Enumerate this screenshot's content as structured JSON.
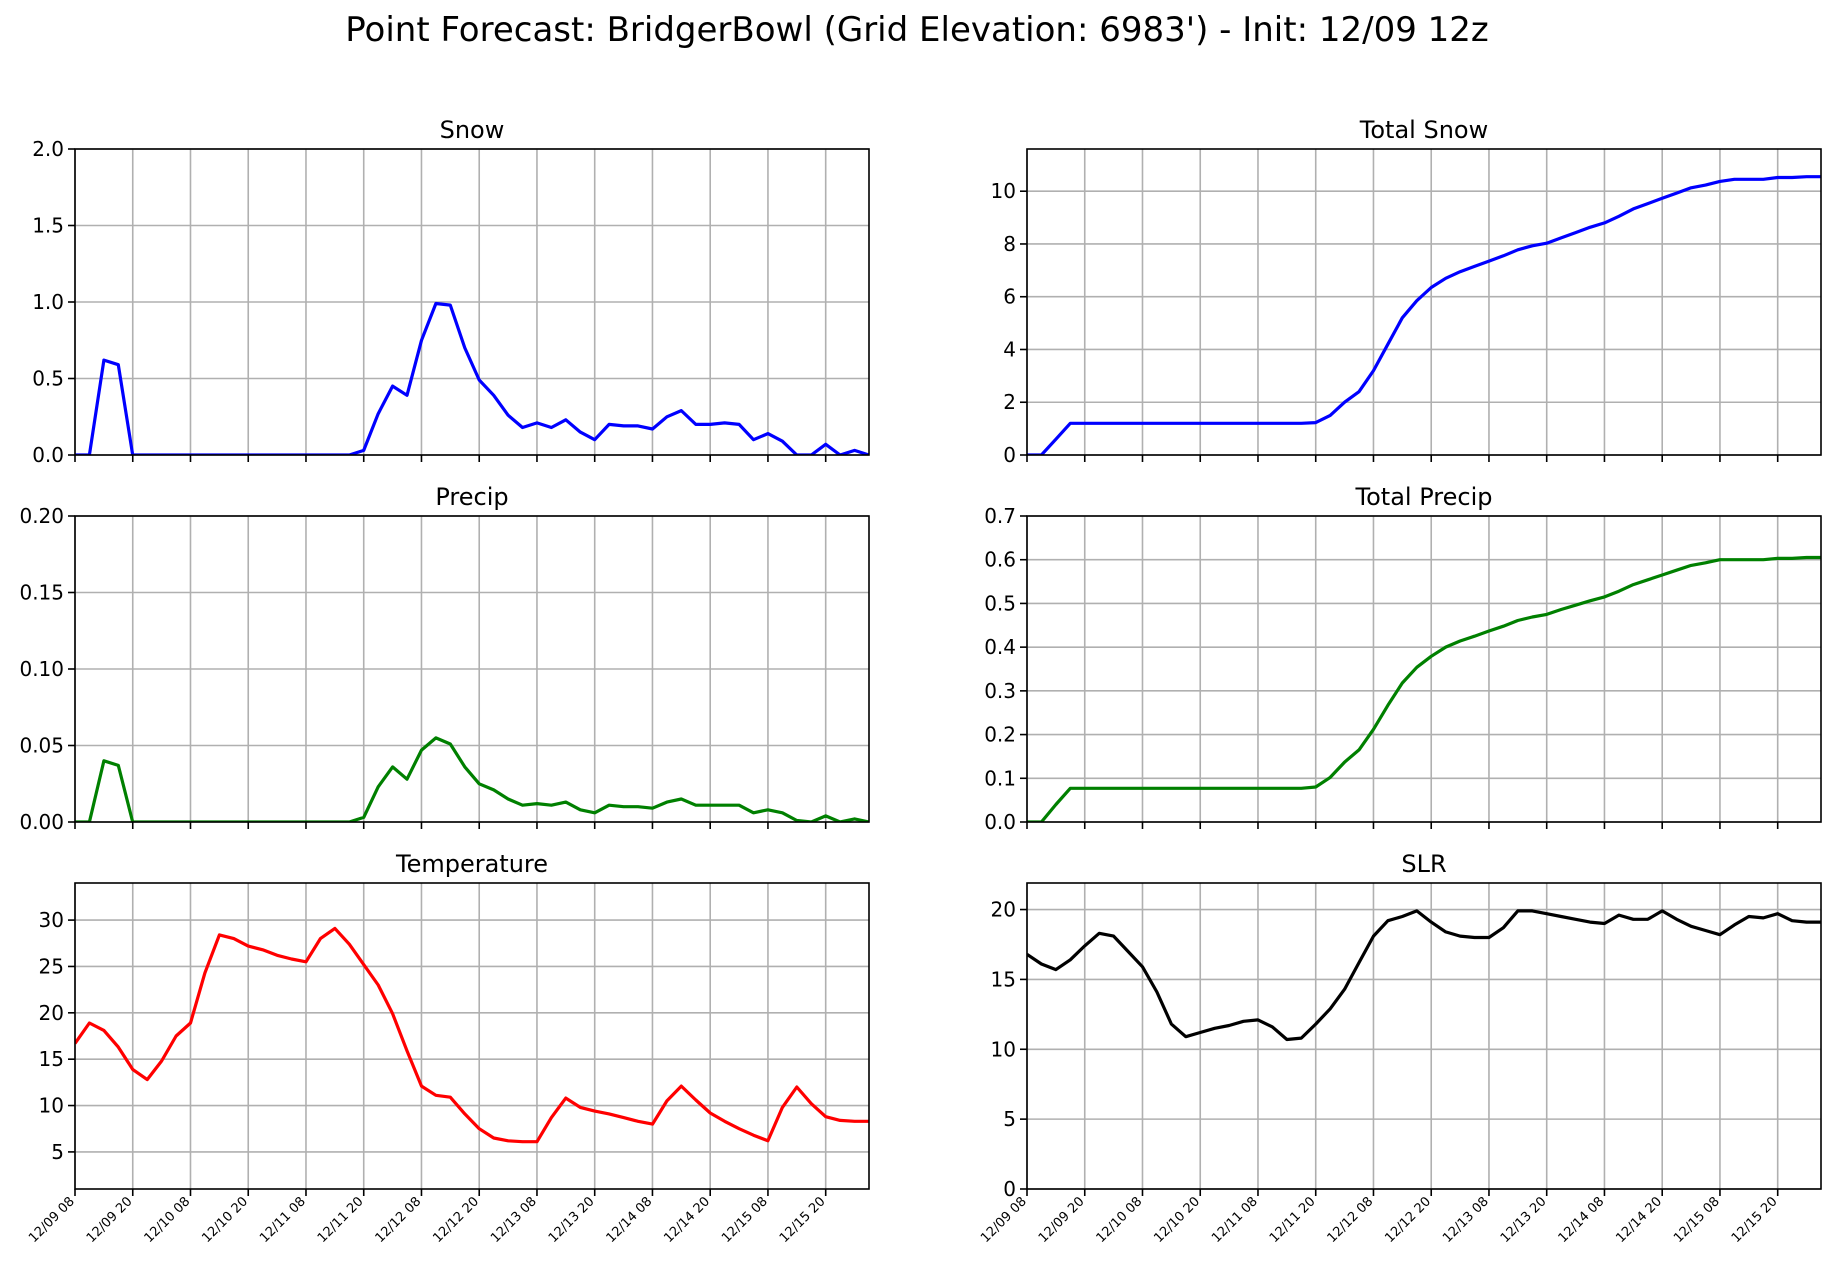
{
  "figure": {
    "title": "Point Forecast: BridgerBowl (Grid Elevation: 6983') - Init: 12/09 12z"
  },
  "time_labels": [
    "12/09 08",
    "12/09 20",
    "12/10 08",
    "12/10 20",
    "12/11 08",
    "12/11 20",
    "12/12 08",
    "12/12 20",
    "12/13 08",
    "12/13 20",
    "12/14 08",
    "12/14 20",
    "12/15 08",
    "12/15 20"
  ],
  "chart_data": [
    {
      "id": "snow",
      "type": "line",
      "title": "Snow",
      "color": "#0000ff",
      "ylim": [
        0,
        2.0
      ],
      "yticks": [
        0.0,
        0.5,
        1.0,
        1.5,
        2.0
      ],
      "ytick_labels": [
        "0.0",
        "0.5",
        "1.0",
        "1.5",
        "2.0"
      ],
      "xlim": [
        0,
        165
      ],
      "xticks": [
        0,
        12,
        24,
        36,
        48,
        60,
        72,
        84,
        96,
        108,
        120,
        132,
        144,
        156
      ],
      "grid": true,
      "show_xticklabels": false,
      "x": [
        0,
        3,
        6,
        9,
        12,
        15,
        18,
        21,
        24,
        27,
        30,
        33,
        36,
        39,
        42,
        45,
        48,
        51,
        54,
        57,
        60,
        63,
        66,
        69,
        72,
        75,
        78,
        81,
        84,
        87,
        90,
        93,
        96,
        99,
        102,
        105,
        108,
        111,
        114,
        117,
        120,
        123,
        126,
        129,
        132,
        135,
        138,
        141,
        144,
        147,
        150,
        153,
        156,
        159,
        162,
        165
      ],
      "values": [
        0,
        0,
        0.62,
        0.59,
        0,
        0,
        0,
        0,
        0,
        0,
        0,
        0,
        0,
        0,
        0,
        0,
        0,
        0,
        0,
        0,
        0.03,
        0.27,
        0.45,
        0.39,
        0.75,
        0.99,
        0.98,
        0.7,
        0.49,
        0.39,
        0.26,
        0.18,
        0.21,
        0.18,
        0.23,
        0.15,
        0.1,
        0.2,
        0.19,
        0.19,
        0.17,
        0.25,
        0.29,
        0.2,
        0.2,
        0.21,
        0.2,
        0.1,
        0.14,
        0.09,
        0,
        0,
        0.07,
        0,
        0.03,
        0
      ]
    },
    {
      "id": "total-snow",
      "type": "line",
      "title": "Total Snow",
      "color": "#0000ff",
      "ylim": [
        0,
        11.6
      ],
      "yticks": [
        0,
        2,
        4,
        6,
        8,
        10
      ],
      "ytick_labels": [
        "0",
        "2",
        "4",
        "6",
        "8",
        "10"
      ],
      "xlim": [
        0,
        165
      ],
      "xticks": [
        0,
        12,
        24,
        36,
        48,
        60,
        72,
        84,
        96,
        108,
        120,
        132,
        144,
        156
      ],
      "grid": true,
      "show_xticklabels": false,
      "x": [
        0,
        3,
        6,
        9,
        12,
        15,
        18,
        21,
        24,
        27,
        30,
        33,
        36,
        39,
        42,
        45,
        48,
        51,
        54,
        57,
        60,
        63,
        66,
        69,
        72,
        75,
        78,
        81,
        84,
        87,
        90,
        93,
        96,
        99,
        102,
        105,
        108,
        111,
        114,
        117,
        120,
        123,
        126,
        129,
        132,
        135,
        138,
        141,
        144,
        147,
        150,
        153,
        156,
        159,
        162,
        165
      ],
      "values": [
        0,
        0,
        0.6,
        1.2,
        1.2,
        1.2,
        1.2,
        1.2,
        1.2,
        1.2,
        1.2,
        1.2,
        1.2,
        1.2,
        1.2,
        1.2,
        1.2,
        1.2,
        1.2,
        1.2,
        1.23,
        1.5,
        2.0,
        2.4,
        3.2,
        4.2,
        5.2,
        5.85,
        6.35,
        6.7,
        6.95,
        7.15,
        7.35,
        7.55,
        7.78,
        7.93,
        8.03,
        8.23,
        8.43,
        8.63,
        8.8,
        9.05,
        9.33,
        9.53,
        9.73,
        9.93,
        10.13,
        10.23,
        10.37,
        10.45,
        10.45,
        10.45,
        10.52,
        10.52,
        10.55,
        10.55
      ]
    },
    {
      "id": "precip",
      "type": "line",
      "title": "Precip",
      "color": "#008000",
      "ylim": [
        0,
        0.2
      ],
      "yticks": [
        0,
        0.05,
        0.1,
        0.15,
        0.2
      ],
      "ytick_labels": [
        "0.00",
        "0.05",
        "0.10",
        "0.15",
        "0.20"
      ],
      "xlim": [
        0,
        165
      ],
      "xticks": [
        0,
        12,
        24,
        36,
        48,
        60,
        72,
        84,
        96,
        108,
        120,
        132,
        144,
        156
      ],
      "grid": true,
      "show_xticklabels": false,
      "x": [
        0,
        3,
        6,
        9,
        12,
        15,
        18,
        21,
        24,
        27,
        30,
        33,
        36,
        39,
        42,
        45,
        48,
        51,
        54,
        57,
        60,
        63,
        66,
        69,
        72,
        75,
        78,
        81,
        84,
        87,
        90,
        93,
        96,
        99,
        102,
        105,
        108,
        111,
        114,
        117,
        120,
        123,
        126,
        129,
        132,
        135,
        138,
        141,
        144,
        147,
        150,
        153,
        156,
        159,
        162,
        165
      ],
      "values": [
        0,
        0,
        0.04,
        0.037,
        0,
        0,
        0,
        0,
        0,
        0,
        0,
        0,
        0,
        0,
        0,
        0,
        0,
        0,
        0,
        0,
        0.003,
        0.023,
        0.036,
        0.028,
        0.047,
        0.055,
        0.051,
        0.036,
        0.025,
        0.021,
        0.015,
        0.011,
        0.012,
        0.011,
        0.013,
        0.008,
        0.006,
        0.011,
        0.01,
        0.01,
        0.009,
        0.013,
        0.015,
        0.011,
        0.011,
        0.011,
        0.011,
        0.006,
        0.008,
        0.006,
        0.001,
        0,
        0.004,
        0,
        0.002,
        0
      ]
    },
    {
      "id": "total-precip",
      "type": "line",
      "title": "Total Precip",
      "color": "#008000",
      "ylim": [
        0,
        0.7
      ],
      "yticks": [
        0,
        0.1,
        0.2,
        0.3,
        0.4,
        0.5,
        0.6,
        0.7
      ],
      "ytick_labels": [
        "0.0",
        "0.1",
        "0.2",
        "0.3",
        "0.4",
        "0.5",
        "0.6",
        "0.7"
      ],
      "xlim": [
        0,
        165
      ],
      "xticks": [
        0,
        12,
        24,
        36,
        48,
        60,
        72,
        84,
        96,
        108,
        120,
        132,
        144,
        156
      ],
      "grid": true,
      "show_xticklabels": false,
      "x": [
        0,
        3,
        6,
        9,
        12,
        15,
        18,
        21,
        24,
        27,
        30,
        33,
        36,
        39,
        42,
        45,
        48,
        51,
        54,
        57,
        60,
        63,
        66,
        69,
        72,
        75,
        78,
        81,
        84,
        87,
        90,
        93,
        96,
        99,
        102,
        105,
        108,
        111,
        114,
        117,
        120,
        123,
        126,
        129,
        132,
        135,
        138,
        141,
        144,
        147,
        150,
        153,
        156,
        159,
        162,
        165
      ],
      "values": [
        0,
        0,
        0.04,
        0.077,
        0.077,
        0.077,
        0.077,
        0.077,
        0.077,
        0.077,
        0.077,
        0.077,
        0.077,
        0.077,
        0.077,
        0.077,
        0.077,
        0.077,
        0.077,
        0.077,
        0.08,
        0.102,
        0.137,
        0.165,
        0.212,
        0.267,
        0.318,
        0.354,
        0.379,
        0.4,
        0.414,
        0.425,
        0.437,
        0.448,
        0.461,
        0.469,
        0.475,
        0.486,
        0.496,
        0.506,
        0.515,
        0.528,
        0.543,
        0.554,
        0.565,
        0.576,
        0.587,
        0.593,
        0.6,
        0.6,
        0.6,
        0.6,
        0.603,
        0.603,
        0.605,
        0.605
      ]
    },
    {
      "id": "temperature",
      "type": "line",
      "title": "Temperature",
      "color": "#ff0000",
      "ylim": [
        1,
        34
      ],
      "yticks": [
        5,
        10,
        15,
        20,
        25,
        30
      ],
      "ytick_labels": [
        "5",
        "10",
        "15",
        "20",
        "25",
        "30"
      ],
      "xlim": [
        0,
        165
      ],
      "xticks": [
        0,
        12,
        24,
        36,
        48,
        60,
        72,
        84,
        96,
        108,
        120,
        132,
        144,
        156
      ],
      "grid": true,
      "show_xticklabels": true,
      "x": [
        0,
        3,
        6,
        9,
        12,
        15,
        18,
        21,
        24,
        27,
        30,
        33,
        36,
        39,
        42,
        45,
        48,
        51,
        54,
        57,
        60,
        63,
        66,
        69,
        72,
        75,
        78,
        81,
        84,
        87,
        90,
        93,
        96,
        99,
        102,
        105,
        108,
        111,
        114,
        117,
        120,
        123,
        126,
        129,
        132,
        135,
        138,
        141,
        144,
        147,
        150,
        153,
        156,
        159,
        162,
        165
      ],
      "values": [
        16.7,
        18.9,
        18.1,
        16.3,
        13.9,
        12.8,
        14.8,
        17.5,
        18.9,
        24.3,
        28.4,
        28,
        27.2,
        26.8,
        26.2,
        25.8,
        25.5,
        28,
        29.1,
        27.4,
        25.2,
        23,
        19.9,
        15.9,
        12.1,
        11.1,
        10.9,
        9.1,
        7.5,
        6.5,
        6.2,
        6.1,
        6.1,
        8.7,
        10.8,
        9.8,
        9.4,
        9.1,
        8.7,
        8.3,
        8,
        10.5,
        12.1,
        10.6,
        9.2,
        8.3,
        7.5,
        6.8,
        6.2,
        9.8,
        12,
        10.2,
        8.8,
        8.4,
        8.3,
        8.3
      ]
    },
    {
      "id": "slr",
      "type": "line",
      "title": "SLR",
      "color": "#000000",
      "ylim": [
        0,
        21.9
      ],
      "yticks": [
        0,
        5,
        10,
        15,
        20
      ],
      "ytick_labels": [
        "0",
        "5",
        "10",
        "15",
        "20"
      ],
      "xlim": [
        0,
        165
      ],
      "xticks": [
        0,
        12,
        24,
        36,
        48,
        60,
        72,
        84,
        96,
        108,
        120,
        132,
        144,
        156
      ],
      "grid": true,
      "show_xticklabels": true,
      "x": [
        0,
        3,
        6,
        9,
        12,
        15,
        18,
        21,
        24,
        27,
        30,
        33,
        36,
        39,
        42,
        45,
        48,
        51,
        54,
        57,
        60,
        63,
        66,
        69,
        72,
        75,
        78,
        81,
        84,
        87,
        90,
        93,
        96,
        99,
        102,
        105,
        108,
        111,
        114,
        117,
        120,
        123,
        126,
        129,
        132,
        135,
        138,
        141,
        144,
        147,
        150,
        153,
        156,
        159,
        162,
        165
      ],
      "values": [
        16.8,
        16.1,
        15.7,
        16.4,
        17.4,
        18.3,
        18.1,
        17,
        15.9,
        14.1,
        11.8,
        10.9,
        11.2,
        11.5,
        11.7,
        12,
        12.1,
        11.6,
        10.7,
        10.8,
        11.8,
        12.9,
        14.3,
        16.2,
        18.1,
        19.2,
        19.5,
        19.9,
        19.1,
        18.4,
        18.1,
        18,
        18,
        18.7,
        19.9,
        19.9,
        19.7,
        19.5,
        19.3,
        19.1,
        19,
        19.6,
        19.3,
        19.3,
        19.9,
        19.3,
        18.8,
        18.5,
        18.2,
        18.9,
        19.5,
        19.4,
        19.7,
        19.2,
        19.1,
        19.1
      ]
    }
  ]
}
